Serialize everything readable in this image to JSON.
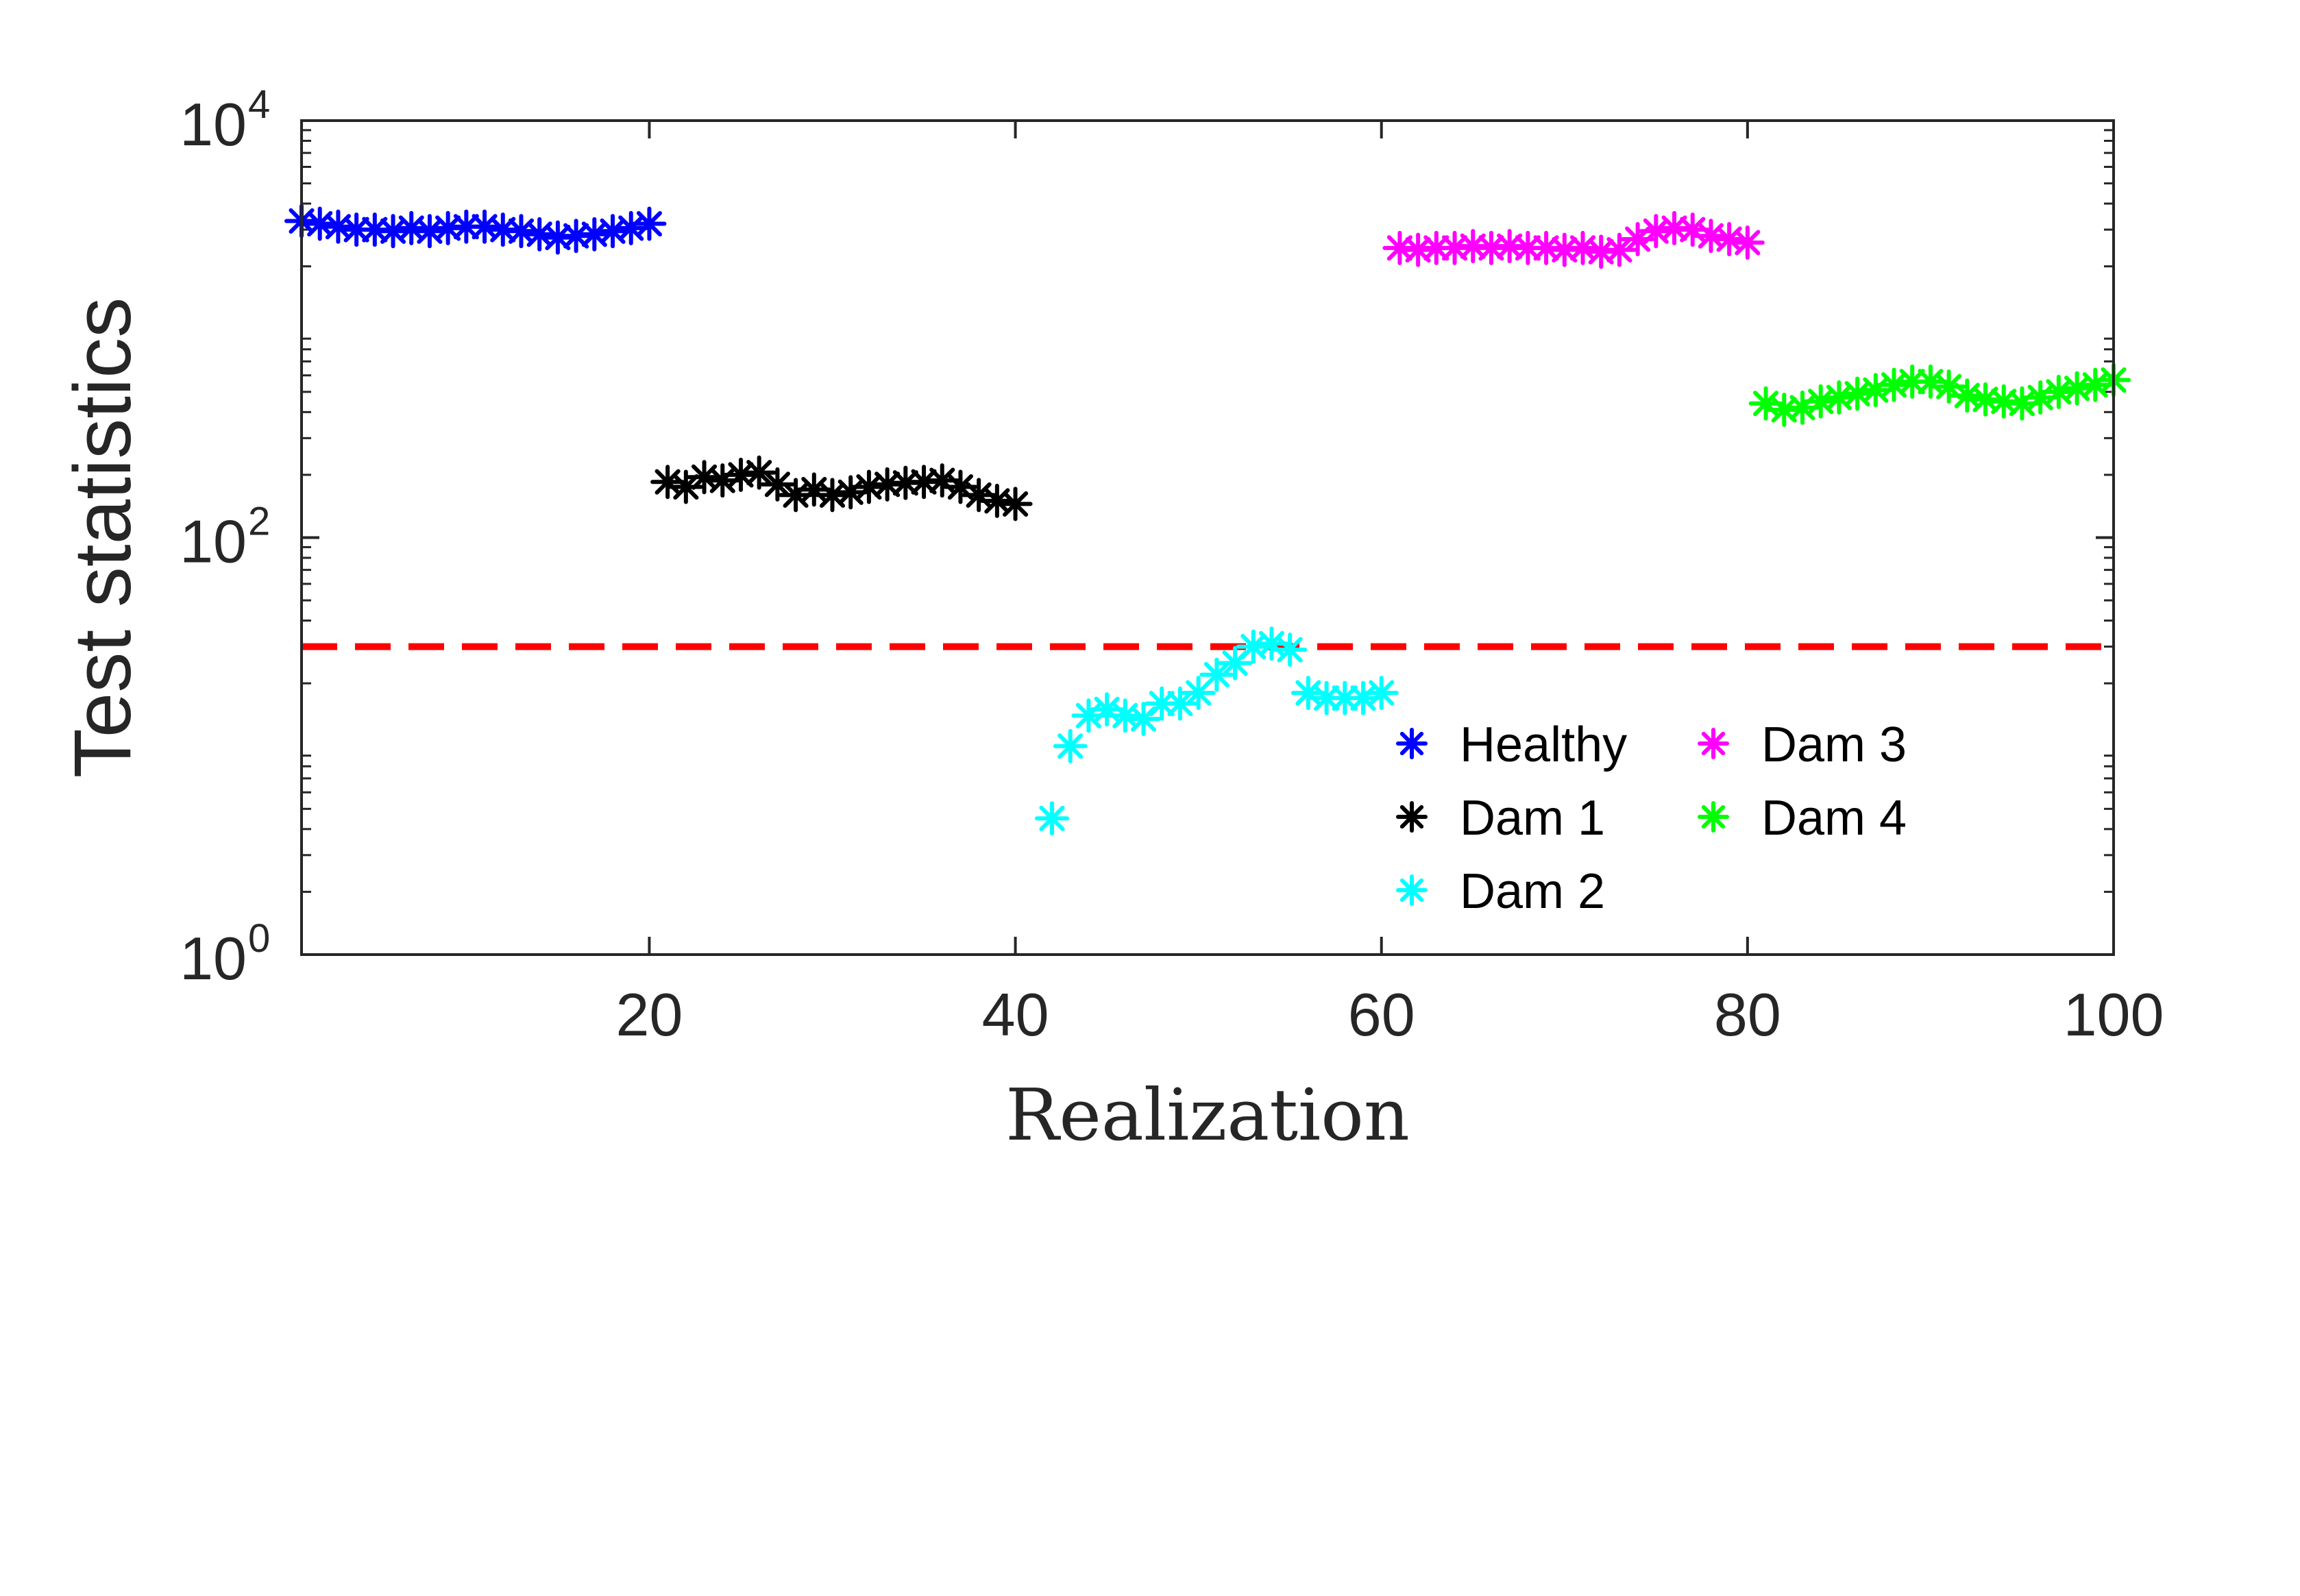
{
  "chart_data": {
    "type": "scatter",
    "title": "",
    "xlabel": "Realization",
    "ylabel": "Test statistics",
    "xlim": [
      1,
      100
    ],
    "ylim": [
      1,
      10000
    ],
    "yscale": "log",
    "x_ticks": [
      20,
      40,
      60,
      80,
      100
    ],
    "x_tick_labels": [
      "20",
      "40",
      "60",
      "80",
      "100"
    ],
    "y_ticks": [
      {
        "value": 1,
        "base": "10",
        "exponent": "0"
      },
      {
        "value": 100,
        "base": "10",
        "exponent": "2"
      },
      {
        "value": 10000,
        "base": "10",
        "exponent": "4"
      }
    ],
    "threshold": {
      "value": 30,
      "color": "#ff0000",
      "style": "dashed"
    },
    "marker": "asterisk",
    "legend_position": "lower-right",
    "series": [
      {
        "name": "Healthy",
        "color": "#0000ff",
        "x": [
          1,
          2,
          3,
          4,
          5,
          6,
          7,
          8,
          9,
          10,
          11,
          12,
          13,
          14,
          15,
          16,
          17,
          18,
          19,
          20
        ],
        "y": [
          3300,
          3200,
          3100,
          3000,
          3000,
          2950,
          3050,
          2950,
          3050,
          3100,
          3100,
          3000,
          2950,
          2850,
          2750,
          2800,
          2850,
          2950,
          3050,
          3200
        ]
      },
      {
        "name": "Dam 1",
        "color": "#000000",
        "x": [
          21,
          22,
          23,
          24,
          25,
          26,
          27,
          28,
          29,
          30,
          31,
          32,
          33,
          34,
          35,
          36,
          37,
          38,
          39,
          40
        ],
        "y": [
          185,
          175,
          195,
          188,
          200,
          205,
          180,
          160,
          170,
          160,
          165,
          175,
          180,
          183,
          185,
          188,
          175,
          160,
          150,
          145
        ]
      },
      {
        "name": "Dam 2",
        "color": "#00ffff",
        "x": [
          42,
          43,
          44,
          45,
          46,
          47,
          48,
          49,
          50,
          51,
          52,
          53,
          54,
          55,
          56,
          57,
          58,
          59,
          60
        ],
        "y": [
          4.5,
          10,
          14,
          15,
          14,
          13.5,
          16,
          16,
          18,
          22,
          25,
          30,
          31,
          29,
          18,
          17,
          17,
          17,
          18
        ]
      },
      {
        "name": "Dam 3",
        "color": "#ff00ff",
        "x": [
          61,
          62,
          63,
          64,
          65,
          66,
          67,
          68,
          69,
          70,
          71,
          72,
          73,
          74,
          75,
          76,
          77,
          78,
          79,
          80
        ],
        "y": [
          2450,
          2400,
          2450,
          2450,
          2500,
          2450,
          2500,
          2450,
          2450,
          2400,
          2450,
          2350,
          2400,
          2700,
          2950,
          3050,
          3000,
          2800,
          2700,
          2600
        ]
      },
      {
        "name": "Dam 4",
        "color": "#00ff00",
        "x": [
          81,
          82,
          83,
          84,
          85,
          86,
          87,
          88,
          89,
          90,
          91,
          92,
          93,
          94,
          95,
          96,
          97,
          98,
          99,
          100
        ],
        "y": [
          440,
          410,
          420,
          450,
          470,
          490,
          510,
          540,
          560,
          560,
          530,
          480,
          460,
          450,
          440,
          470,
          500,
          520,
          540,
          570
        ]
      }
    ]
  }
}
